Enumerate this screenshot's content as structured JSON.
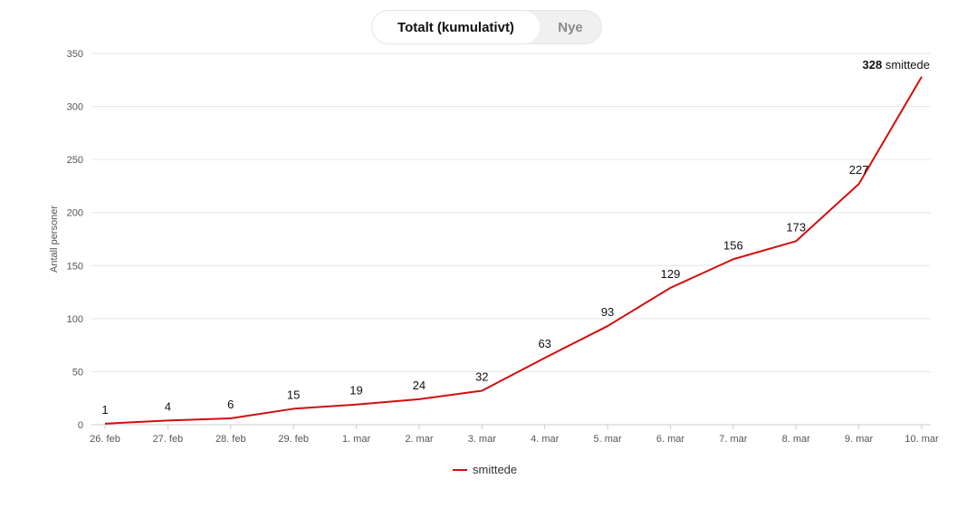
{
  "toggle": {
    "active_label": "Totalt (kumulativt)",
    "inactive_label": "Nye"
  },
  "colors": {
    "series": "#d40d0d",
    "grid": "#e6e6e6"
  },
  "chart_data": {
    "type": "line",
    "categories": [
      "26. feb",
      "27. feb",
      "28. feb",
      "29. feb",
      "1. mar",
      "2. mar",
      "3. mar",
      "4. mar",
      "5. mar",
      "6. mar",
      "7. mar",
      "8. mar",
      "9. mar",
      "10. mar"
    ],
    "series": [
      {
        "name": "smittede",
        "values": [
          1,
          4,
          6,
          15,
          19,
          24,
          32,
          63,
          93,
          129,
          156,
          173,
          227,
          328
        ]
      }
    ],
    "ylabel": "Antall personer",
    "xlabel": "",
    "ylim": [
      0,
      350
    ],
    "yticks": [
      0,
      50,
      100,
      150,
      200,
      250,
      300,
      350
    ],
    "grid": true,
    "legend": "bottom-center",
    "end_label": {
      "value": "328",
      "text": "smittede"
    }
  }
}
